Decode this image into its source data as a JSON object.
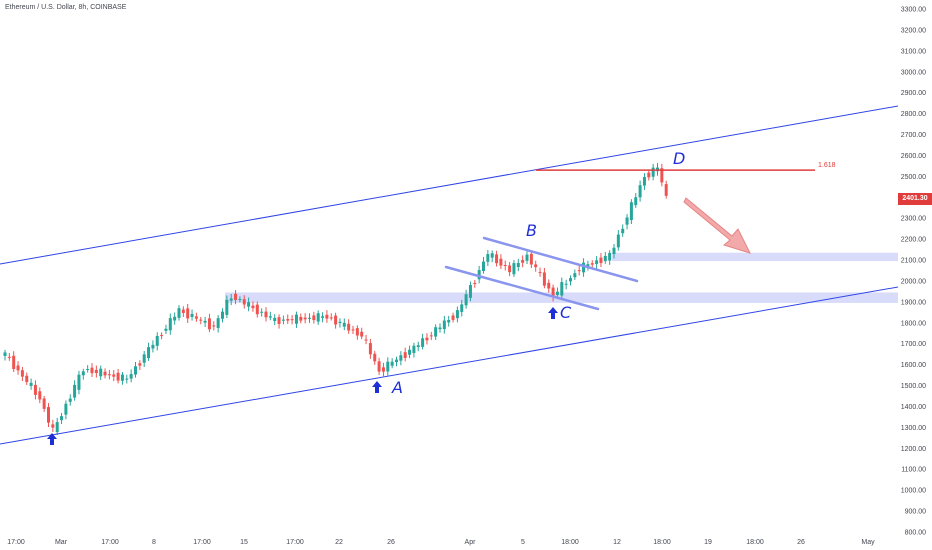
{
  "header": {
    "title": "Ethereum / U.S. Dollar, 8h, COINBASE"
  },
  "price_tag": {
    "value": "2401.30"
  },
  "fib_label": "1.618",
  "annotations": [
    "A",
    "B",
    "C",
    "D"
  ],
  "colors": {
    "up": "#26a69a",
    "down": "#ef5350",
    "channel": "#2f45e8",
    "zone": "#d8dcfa",
    "resistance": "#e03c3c",
    "arrow": "#f19b9b"
  },
  "chart_data": {
    "type": "candlestick",
    "title": "Ethereum / U.S. Dollar, 8h, COINBASE",
    "y_tick_labels": [
      "3300.00",
      "3200.00",
      "3100.00",
      "3000.00",
      "2900.00",
      "2800.00",
      "2700.00",
      "2600.00",
      "2500.00",
      "2400.00",
      "2300.00",
      "2200.00",
      "2100.00",
      "2000.00",
      "1900.00",
      "1800.00",
      "1700.00",
      "1600.00",
      "1500.00",
      "1400.00",
      "1300.00",
      "1200.00",
      "1100.00",
      "1000.00",
      "900.00",
      "800.00"
    ],
    "x_tick_labels": [
      "17:00",
      "Mar",
      "17:00",
      "8",
      "17:00",
      "15",
      "17:00",
      "22",
      "26",
      "Apr",
      "5",
      "18:00",
      "12",
      "18:00",
      "19",
      "18:00",
      "26",
      "May"
    ],
    "ylim": [
      800,
      3300
    ],
    "close_keypoints": [
      {
        "index": 0,
        "close": 1650
      },
      {
        "index": 8,
        "close": 1440
      },
      {
        "index": 11,
        "close": 1280
      },
      {
        "index": 18,
        "close": 1580
      },
      {
        "index": 28,
        "close": 1530
      },
      {
        "index": 34,
        "close": 1700
      },
      {
        "index": 40,
        "close": 1860
      },
      {
        "index": 48,
        "close": 1780
      },
      {
        "index": 52,
        "close": 1930
      },
      {
        "index": 62,
        "close": 1810
      },
      {
        "index": 74,
        "close": 1830
      },
      {
        "index": 82,
        "close": 1740
      },
      {
        "index": 86,
        "close": 1570
      },
      {
        "index": 94,
        "close": 1680
      },
      {
        "index": 104,
        "close": 1850
      },
      {
        "index": 111,
        "close": 2130
      },
      {
        "index": 116,
        "close": 2050
      },
      {
        "index": 120,
        "close": 2120
      },
      {
        "index": 126,
        "close": 1930
      },
      {
        "index": 132,
        "close": 2060
      },
      {
        "index": 139,
        "close": 2120
      },
      {
        "index": 147,
        "close": 2500
      },
      {
        "index": 150,
        "close": 2540
      },
      {
        "index": 152,
        "close": 2400
      }
    ],
    "levels": {
      "fib_1618": 2530,
      "current_price": 2401.3
    },
    "zones": [
      {
        "low": 2095,
        "high": 2135
      },
      {
        "low": 1895,
        "high": 1945
      }
    ]
  }
}
